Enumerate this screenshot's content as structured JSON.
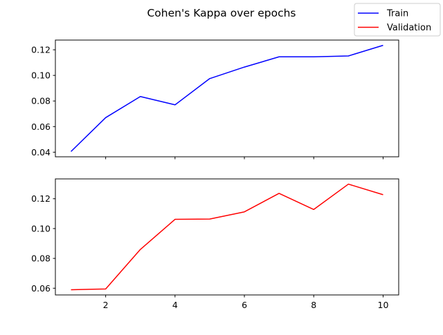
{
  "chart_data": {
    "type": "line",
    "title": "Cohen's Kappa over epochs",
    "legend": {
      "placement": "top-right",
      "entries": [
        {
          "label": "Train",
          "color": "#0000ff"
        },
        {
          "label": "Validation",
          "color": "#ff0000"
        }
      ]
    },
    "grid": false,
    "shared_x": true,
    "subplots": [
      {
        "series": [
          {
            "name": "Train",
            "color": "#0000ff",
            "x": [
              1,
              2,
              3,
              4,
              5,
              6,
              7,
              8,
              9,
              10
            ],
            "y": [
              0.0405,
              0.067,
              0.0835,
              0.077,
              0.0975,
              0.1065,
              0.1145,
              0.1145,
              0.1152,
              0.1235
            ]
          }
        ],
        "xlim": [
          0.55,
          10.45
        ],
        "ylim": [
          0.0364,
          0.1276
        ],
        "yticks": [
          0.04,
          0.06,
          0.08,
          0.1,
          0.12
        ],
        "ytick_labels": [
          "0.04",
          "0.06",
          "0.08",
          "0.10",
          "0.12"
        ],
        "xticks": [
          2,
          4,
          6,
          8,
          10
        ],
        "xtick_labels": []
      },
      {
        "series": [
          {
            "name": "Validation",
            "color": "#ff0000",
            "x": [
              1,
              2,
              3,
              4,
              5,
              6,
              7,
              8,
              9,
              10
            ],
            "y": [
              0.059,
              0.0595,
              0.086,
              0.1062,
              0.1064,
              0.1112,
              0.1236,
              0.1128,
              0.1298,
              0.1227
            ]
          }
        ],
        "xlim": [
          0.55,
          10.45
        ],
        "ylim": [
          0.0555,
          0.1333
        ],
        "yticks": [
          0.06,
          0.08,
          0.1,
          0.12
        ],
        "ytick_labels": [
          "0.06",
          "0.08",
          "0.10",
          "0.12"
        ],
        "xticks": [
          2,
          4,
          6,
          8,
          10
        ],
        "xtick_labels": [
          "2",
          "4",
          "6",
          "8",
          "10"
        ]
      }
    ]
  }
}
